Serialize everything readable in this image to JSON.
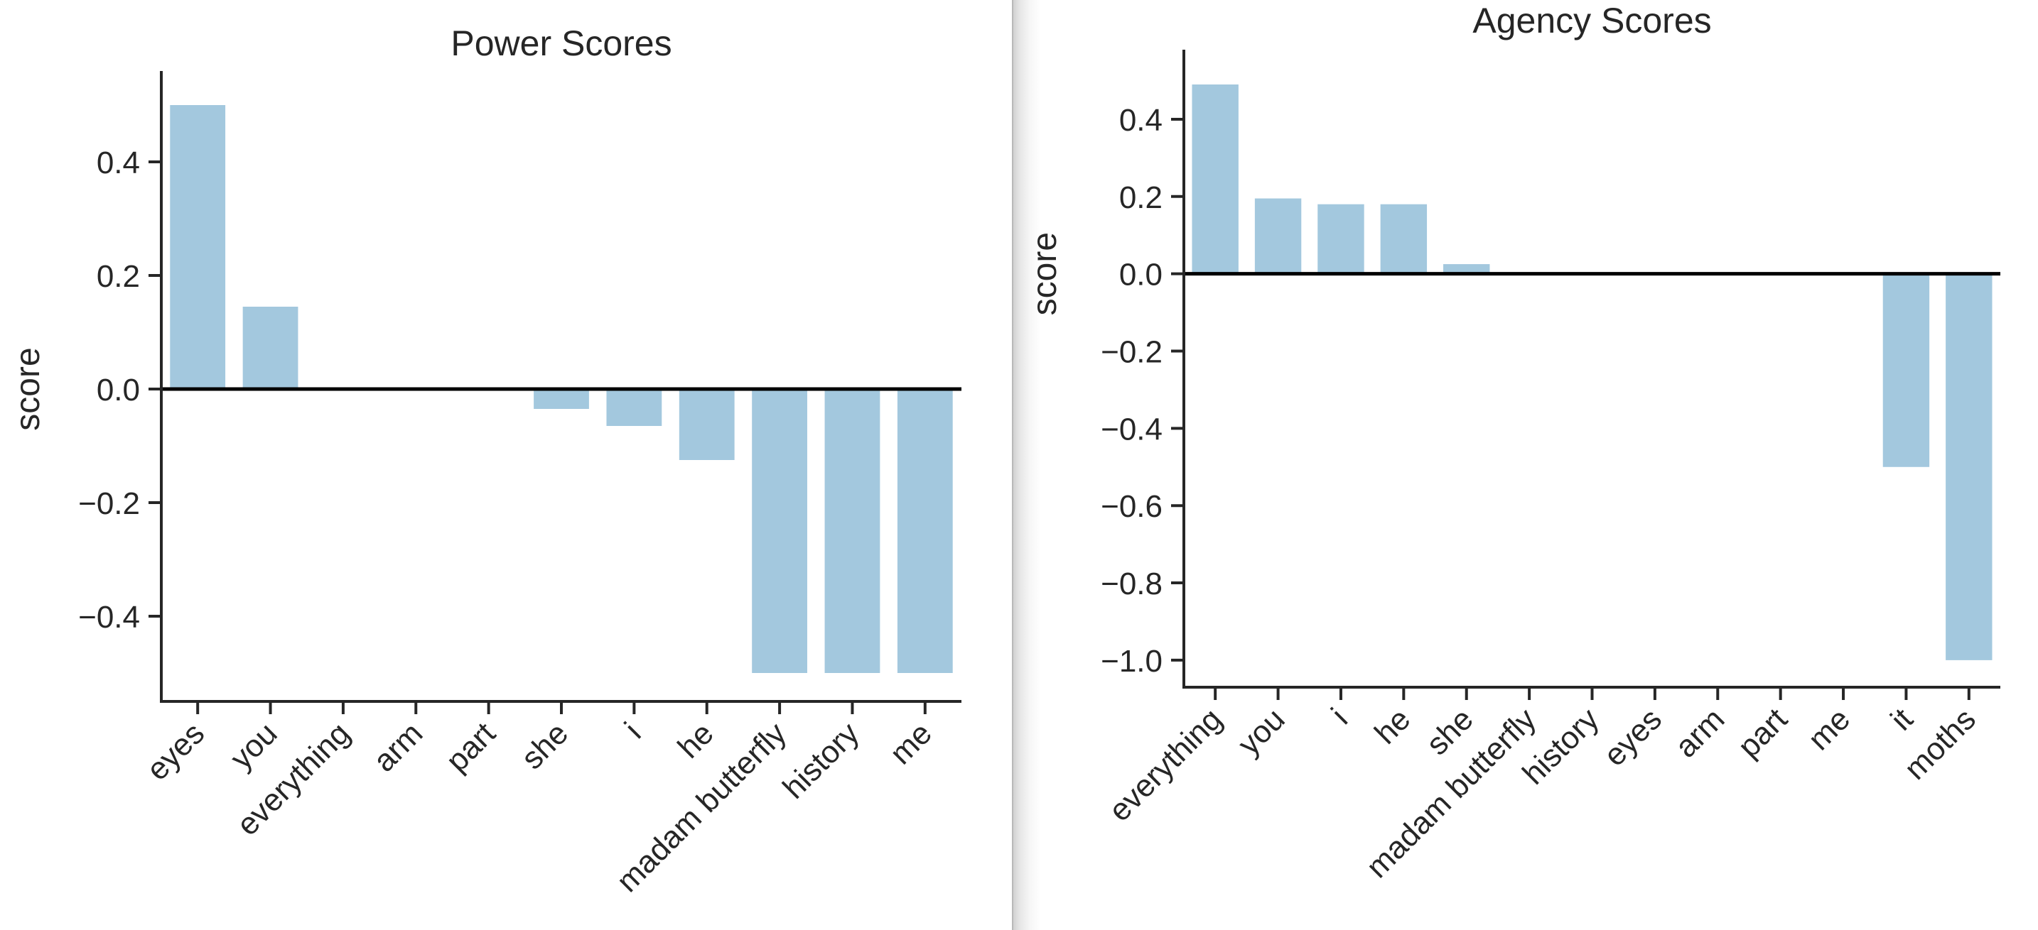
{
  "chart_data": [
    {
      "type": "bar",
      "title": "Power Scores",
      "xlabel": "",
      "ylabel": "score",
      "ylim": [
        -0.55,
        0.56
      ],
      "yticks": [
        0.4,
        0.2,
        0.0,
        -0.2,
        -0.4
      ],
      "ytick_labels": [
        "0.4",
        "0.2",
        "0.0",
        "−0.2",
        "−0.4"
      ],
      "categories": [
        "eyes",
        "you",
        "everything",
        "arm",
        "part",
        "she",
        "i",
        "he",
        "madam butterfly",
        "history",
        "me"
      ],
      "values": [
        0.5,
        0.145,
        0.0,
        0.0,
        0.0,
        -0.035,
        -0.065,
        -0.125,
        -0.5,
        -0.5,
        -0.5
      ],
      "bar_color": "#a3c8de",
      "zero_line": true,
      "grid": false
    },
    {
      "type": "bar",
      "title": "Agency Scores",
      "xlabel": "",
      "ylabel": "score",
      "ylim": [
        -1.07,
        0.58
      ],
      "yticks": [
        0.4,
        0.2,
        0.0,
        -0.2,
        -0.4,
        -0.6,
        -0.8,
        -1.0
      ],
      "ytick_labels": [
        "0.4",
        "0.2",
        "0.0",
        "−0.2",
        "−0.4",
        "−0.6",
        "−0.8",
        "−1.0"
      ],
      "categories": [
        "everything",
        "you",
        "i",
        "he",
        "she",
        "madam butterfly",
        "history",
        "eyes",
        "arm",
        "part",
        "me",
        "it",
        "moths"
      ],
      "values": [
        0.49,
        0.195,
        0.18,
        0.18,
        0.025,
        0.0,
        0.0,
        0.0,
        0.0,
        0.0,
        0.0,
        -0.5,
        -1.0
      ],
      "bar_color": "#a3c8de",
      "zero_line": true,
      "grid": false
    }
  ]
}
